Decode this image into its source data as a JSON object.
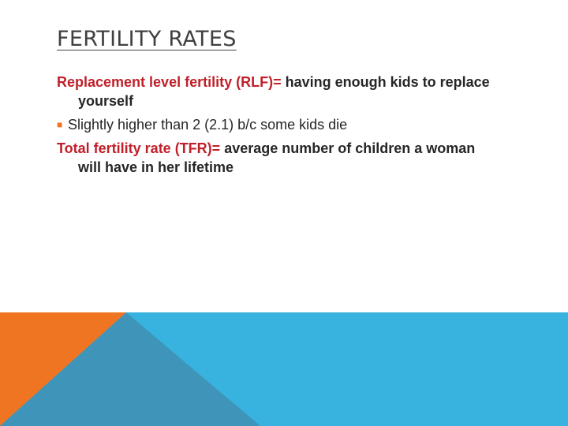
{
  "slide": {
    "title": "FERTILITY RATES",
    "items": [
      {
        "term": "Replacement level fertility (RLF)=",
        "definition": " having enough kids to replace yourself"
      },
      {
        "bullet": "Slightly higher than 2 (2.1) b/c some kids die"
      },
      {
        "term": "Total fertility rate (TFR)=",
        "definition": " average number of children a woman will have in her lifetime"
      }
    ],
    "bullet_icon": "square-bullet-icon"
  },
  "colors": {
    "term_red": "#c0202a",
    "orange": "#ef7522",
    "light_blue": "#38b2de",
    "mid_blue": "#3f95b9",
    "text": "#262626"
  }
}
